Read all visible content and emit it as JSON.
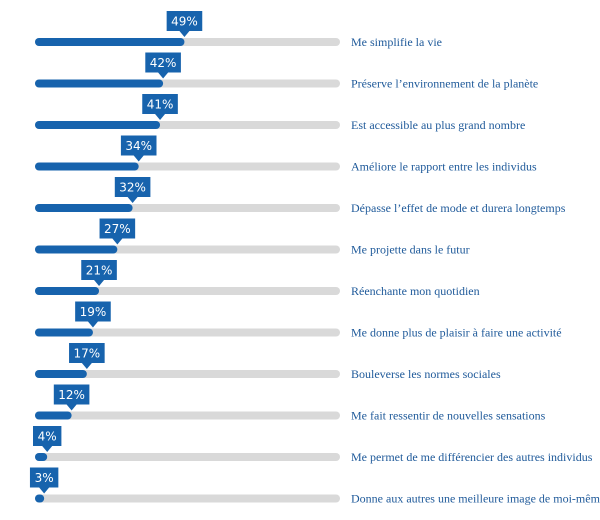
{
  "chart_data": {
    "type": "bar",
    "orientation": "horizontal",
    "categories": [
      "Me simplifie la vie",
      "Préserve l’environnement de la planète",
      "Est accessible au plus grand nombre",
      "Améliore le rapport entre les individus",
      "Dépasse l’effet de mode et durera longtemps",
      "Me projette dans le futur",
      "Réenchante mon quotidien",
      "Me donne plus de plaisir à faire une activité",
      "Bouleverse les normes sociales",
      "Me fait ressentir de nouvelles sensations",
      "Me permet de me différencier des autres individus",
      "Donne aux autres une meilleure image de moi-même"
    ],
    "values": [
      49,
      42,
      41,
      34,
      32,
      27,
      21,
      19,
      17,
      12,
      4,
      3
    ],
    "value_labels": [
      "49%",
      "42%",
      "41%",
      "34%",
      "32%",
      "27%",
      "21%",
      "19%",
      "17%",
      "12%",
      "4%",
      "3%"
    ],
    "xlim": [
      0,
      100
    ],
    "unit": "%",
    "grid": false,
    "legend": "none",
    "colors": {
      "bar": "#1763ad",
      "track": "#d9d9d9",
      "callout": "#1763ad",
      "callout_text": "#ffffff",
      "category_text": "#1f5a9a"
    }
  }
}
